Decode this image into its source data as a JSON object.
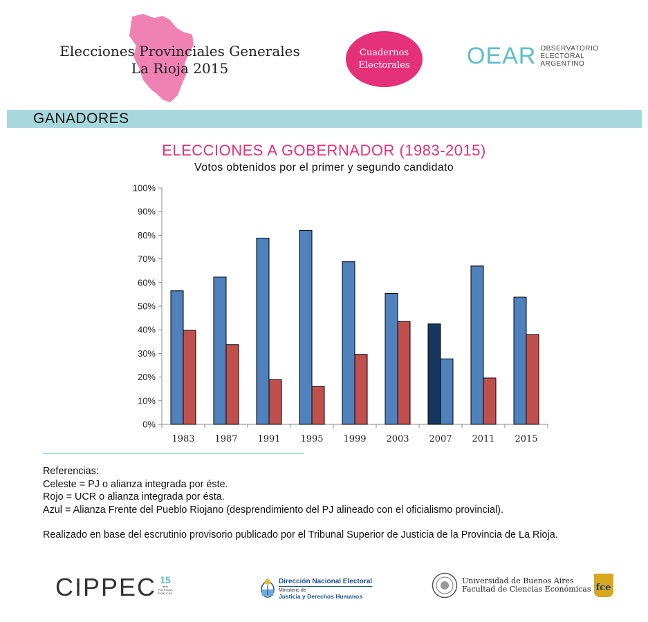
{
  "header": {
    "title_line1": "Elecciones Provinciales Generales",
    "title_line2": "La Rioja 2015",
    "badge_line1": "Cuadernos",
    "badge_line2": "Electorales",
    "oear_mark": "OEAR",
    "oear_line1": "OBSERVATORIO",
    "oear_line2": "ELECTORAL",
    "oear_line3": "ARGENTINO"
  },
  "section": {
    "title": "GANADORES"
  },
  "chart_data": {
    "type": "bar",
    "title": "ELECCIONES A GOBERNADOR (1983-2015)",
    "subtitle": "Votos obtenidos por el primer y segundo candidato",
    "categories": [
      "1983",
      "1987",
      "1991",
      "1995",
      "1999",
      "2003",
      "2007",
      "2011",
      "2015"
    ],
    "series": [
      {
        "name": "Primer candidato",
        "values": [
          56.5,
          62.3,
          78.8,
          82.0,
          68.8,
          55.4,
          42.5,
          67.0,
          53.8
        ],
        "colors": [
          "#4f81bd",
          "#4f81bd",
          "#4f81bd",
          "#4f81bd",
          "#4f81bd",
          "#4f81bd",
          "#17375e",
          "#4f81bd",
          "#4f81bd"
        ]
      },
      {
        "name": "Segundo candidato",
        "values": [
          39.8,
          33.7,
          18.9,
          16.0,
          29.6,
          43.5,
          27.7,
          19.6,
          38.0
        ],
        "colors": [
          "#c0504d",
          "#c0504d",
          "#c0504d",
          "#c0504d",
          "#c0504d",
          "#c0504d",
          "#4f81bd",
          "#c0504d",
          "#c0504d"
        ]
      }
    ],
    "ylim": [
      0,
      100
    ],
    "yticks": [
      0,
      10,
      20,
      30,
      40,
      50,
      60,
      70,
      80,
      90,
      100
    ],
    "ytick_suffix": "%",
    "xlabel": "",
    "ylabel": "",
    "grid": false,
    "legend": "none"
  },
  "notes": {
    "heading": "Referencias:",
    "line1": "Celeste = PJ o alianza integrada por éste.",
    "line2": "Rojo = UCR o alianza integrada por ésta.",
    "line3": "Azul = Alianza Frente del Pueblo Riojano (desprendimiento del PJ alineado con el oficialismo provincial).",
    "source": "Realizado en base del escrutinio provisorio publicado por el Tribunal Superior de Justicia de la Provincia de La Rioja."
  },
  "footer": {
    "cippec_word": "CIPPEC",
    "cippec_15": "15",
    "cippec_sub": "años POLÍTICAS PÚBLICAS",
    "dne_line1": "Dirección Nacional Electoral",
    "dne_line2": "Ministerio de",
    "dne_line3": "Justicia y Derechos Humanos",
    "uba_line1": "Universidad de Buenos Aires",
    "uba_line2": "Facultad de Ciencias Económicas",
    "fce_label": "fce"
  },
  "colors": {
    "accent_pink": "#e5307a",
    "band": "#a8d8de",
    "pj": "#4f81bd",
    "ucr": "#c0504d",
    "frente": "#17375e"
  }
}
